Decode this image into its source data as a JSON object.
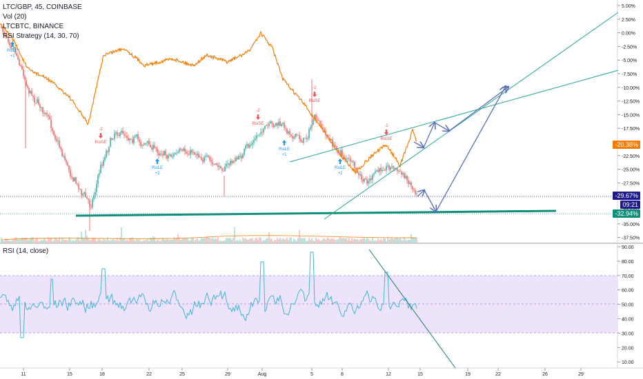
{
  "legend": {
    "symbol": "LTC/GBP, 45, COINBASE",
    "vol": "Vol (20)",
    "compare": "LTCBTC, BINANCE",
    "strategy": "RSI Strategy (14, 30, 70)"
  },
  "rsi_legend": "RSI (14, close)",
  "colors": {
    "candle_up": "#26a69a",
    "candle_down": "#ef5350",
    "compare_line": "#f57c00",
    "support_line": "#0f8f7a",
    "trend_line": "#26a69a",
    "arrow": "#5b6fb5",
    "rsi_line": "#3fb6d6",
    "rsi_band": "#ede3fb"
  },
  "price_axis_labels": [
    "5.00%",
    "2.50%",
    "0.00%",
    "-2.50%",
    "-5.00%",
    "-7.50%",
    "-10.00%",
    "-12.50%",
    "-15.00%",
    "-17.50%",
    "-20.00%",
    "-22.50%",
    "-25.00%",
    "-27.50%",
    "-30.00%",
    "-32.50%",
    "-35.00%",
    "-37.50%"
  ],
  "rsi_axis_labels": [
    "90.00",
    "80.00",
    "70.00",
    "60.00",
    "50.00",
    "40.00",
    "30.00",
    "20.00",
    "10.00"
  ],
  "time_axis_labels": [
    "11",
    "15",
    "18",
    "22",
    "25",
    "29",
    "Aug",
    "5",
    "8",
    "12",
    "15",
    "19",
    "22",
    "26",
    "29"
  ],
  "price_tags": {
    "compare_pct": "-20.38%",
    "current_pct": "-29.67%",
    "timer": "09:21",
    "support_pct": "-32.94%"
  },
  "signals": [
    {
      "text": "RsiLE",
      "sub": "+1",
      "dir": "up"
    },
    {
      "text": "RsiSE",
      "sub": "-2",
      "dir": "down"
    },
    {
      "text": "RsiLE",
      "sub": "+2",
      "dir": "up"
    },
    {
      "text": "RsiSE",
      "sub": "-2",
      "dir": "down"
    },
    {
      "text": "RsiLE",
      "sub": "+1",
      "dir": "up"
    },
    {
      "text": "RsiSE",
      "sub": "-2",
      "dir": "down"
    },
    {
      "text": "RsiLE",
      "sub": "+2",
      "dir": "up"
    },
    {
      "text": "RsiSE",
      "sub": "-2",
      "dir": "down"
    }
  ]
}
